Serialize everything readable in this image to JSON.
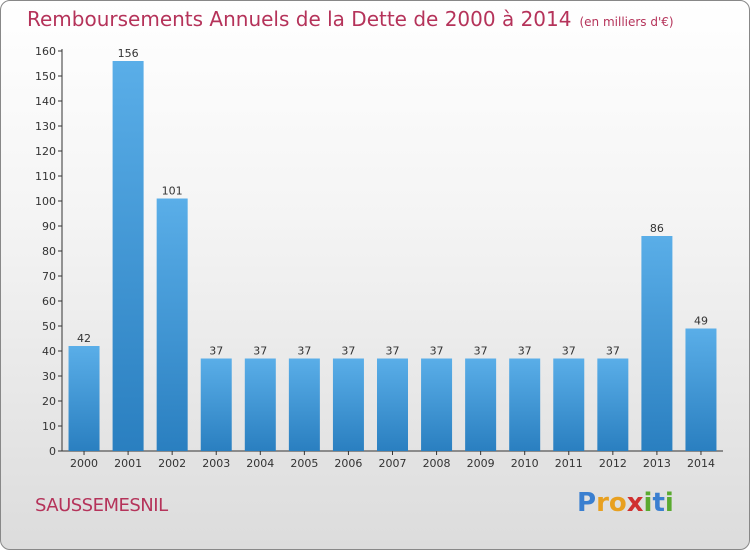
{
  "title": "Remboursements Annuels de la Dette de 2000 à 2014",
  "unit": "(en milliers d'€)",
  "location": "SAUSSEMESNIL",
  "logo": {
    "text": "Proxiti",
    "letters": [
      {
        "char": "P",
        "color": "#3a7fd0"
      },
      {
        "char": "r",
        "color": "#e8a020"
      },
      {
        "char": "o",
        "color": "#e8a020"
      },
      {
        "char": "x",
        "color": "#d03030"
      },
      {
        "char": "i",
        "color": "#5aaa30"
      },
      {
        "char": "t",
        "color": "#3a7fd0"
      },
      {
        "char": "i",
        "color": "#5aaa30"
      }
    ]
  },
  "colors": {
    "bar_top": "#5aaee8",
    "bar_bottom": "#2a7fc0",
    "title": "#b5335a"
  },
  "chart_data": {
    "type": "bar",
    "categories": [
      "2000",
      "2001",
      "2002",
      "2003",
      "2004",
      "2005",
      "2006",
      "2007",
      "2008",
      "2009",
      "2010",
      "2011",
      "2012",
      "2013",
      "2014"
    ],
    "values": [
      42,
      156,
      101,
      37,
      37,
      37,
      37,
      37,
      37,
      37,
      37,
      37,
      37,
      86,
      49
    ],
    "ylim": [
      0,
      160
    ],
    "yticks": [
      0,
      10,
      20,
      30,
      40,
      50,
      60,
      70,
      80,
      90,
      100,
      110,
      120,
      130,
      140,
      150,
      160
    ],
    "grid": false,
    "data_labels": true
  }
}
